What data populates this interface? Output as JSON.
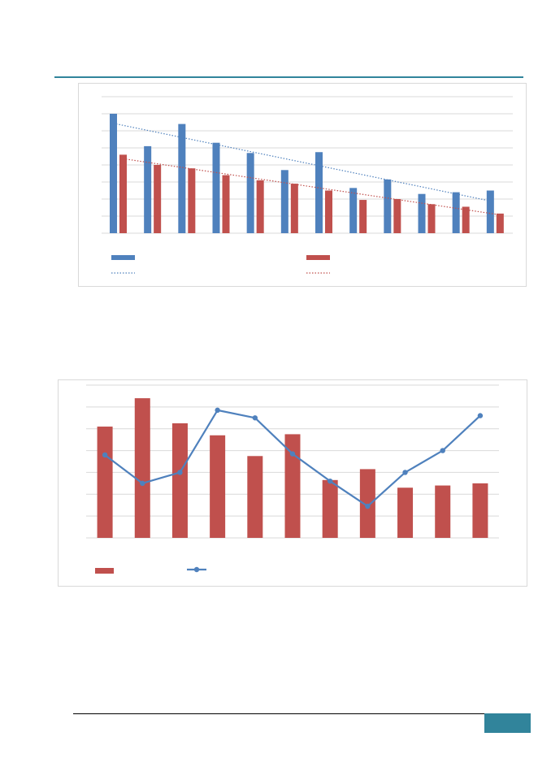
{
  "colors": {
    "accent": "#31849b",
    "footer_tab": "#31849b",
    "series_blue": "#4f81bd",
    "series_red": "#c0504d",
    "gridline": "#d9d9d9",
    "frame": "#d9d9d9"
  },
  "chart_data": [
    {
      "type": "bar",
      "title": "",
      "xlabel": "",
      "ylabel": "",
      "ylim": [
        0,
        8
      ],
      "grid": true,
      "legend_position": "bottom",
      "categories": [
        "",
        "",
        "",
        "",
        "",
        "",
        "",
        "",
        "",
        "",
        "",
        ""
      ],
      "series": [
        {
          "color": "#4f81bd",
          "values": [
            7.0,
            5.1,
            6.4,
            5.3,
            4.7,
            3.7,
            4.75,
            2.65,
            3.15,
            2.3,
            2.4,
            2.5
          ]
        },
        {
          "color": "#c0504d",
          "values": [
            4.6,
            4.0,
            3.8,
            3.4,
            3.1,
            2.9,
            2.5,
            1.95,
            2.0,
            1.7,
            1.55,
            1.15
          ]
        }
      ],
      "trendlines": [
        {
          "type": "linear",
          "style": "dotted",
          "color": "#4f81bd",
          "series": 0
        },
        {
          "type": "linear",
          "style": "dotted",
          "color": "#c0504d",
          "series": 1
        }
      ]
    },
    {
      "type": "bar",
      "title": "",
      "xlabel": "",
      "ylabel": "",
      "ylim": [
        0,
        7
      ],
      "grid": true,
      "legend_position": "bottom",
      "categories": [
        "",
        "",
        "",
        "",
        "",
        "",
        "",
        "",
        "",
        "",
        ""
      ],
      "series": [
        {
          "type": "bar",
          "color": "#c0504d",
          "values": [
            5.1,
            6.4,
            5.25,
            4.7,
            3.75,
            4.75,
            2.65,
            3.15,
            2.3,
            2.4,
            2.5
          ]
        },
        {
          "type": "line",
          "color": "#4f81bd",
          "values": [
            3.8,
            2.5,
            3.0,
            5.85,
            5.5,
            3.85,
            2.6,
            1.45,
            3.0,
            4.0,
            5.6
          ]
        }
      ]
    }
  ]
}
